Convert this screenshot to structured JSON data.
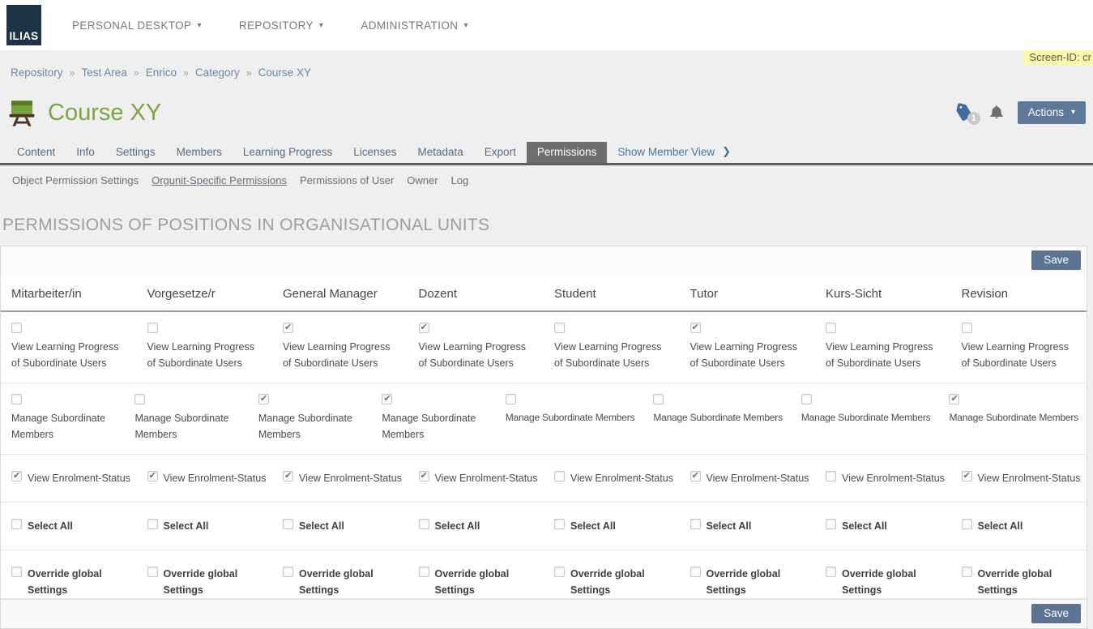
{
  "topnav": {
    "logo_text": "ILIAS",
    "items": [
      {
        "label": "PERSONAL DESKTOP"
      },
      {
        "label": "REPOSITORY"
      },
      {
        "label": "ADMINISTRATION"
      }
    ]
  },
  "screen_id_label": "Screen-ID: cr",
  "breadcrumb": {
    "separator": "»",
    "items": [
      "Repository",
      "Test Area",
      "Enrico",
      "Category",
      "Course XY"
    ]
  },
  "header": {
    "title": "Course XY",
    "tag_badge_count": "1",
    "actions_button_label": "Actions"
  },
  "icons": {
    "caret_down": "▾",
    "chevron_right": "❯",
    "course_icon": "green-chalkboard-easel",
    "tag_icon": "blue-tag",
    "bell_icon": "gray-bell"
  },
  "tabs": {
    "items": [
      {
        "label": "Content",
        "active": false
      },
      {
        "label": "Info",
        "active": false
      },
      {
        "label": "Settings",
        "active": false
      },
      {
        "label": "Members",
        "active": false
      },
      {
        "label": "Learning Progress",
        "active": false
      },
      {
        "label": "Licenses",
        "active": false
      },
      {
        "label": "Metadata",
        "active": false
      },
      {
        "label": "Export",
        "active": false
      },
      {
        "label": "Permissions",
        "active": true
      }
    ],
    "member_view_label": "Show Member View"
  },
  "subtabs": [
    {
      "label": "Object Permission Settings",
      "active": false
    },
    {
      "label": "Orgunit-Specific Permissions",
      "active": true
    },
    {
      "label": "Permissions of User",
      "active": false
    },
    {
      "label": "Owner",
      "active": false
    },
    {
      "label": "Log",
      "active": false
    }
  ],
  "section_heading": "PERMISSIONS OF POSITIONS IN ORGANISATIONAL UNITS",
  "save_button_label": "Save",
  "permissions_table": {
    "columns": [
      "Mitarbeiter/in",
      "Vorgesetze/r",
      "General Manager",
      "Dozent",
      "Student",
      "Tutor",
      "Kurs-Sicht",
      "Revision"
    ],
    "rows": [
      {
        "label": "View Learning Progress of Subordinate Users",
        "layout": "stacked",
        "bold": false,
        "checked": [
          false,
          false,
          true,
          true,
          false,
          true,
          false,
          false
        ]
      },
      {
        "label": "Manage Subordinate Members",
        "layout": "stacked",
        "bold": false,
        "nowrap_from": 4,
        "checked": [
          false,
          false,
          true,
          true,
          false,
          false,
          false,
          true
        ]
      },
      {
        "label": "View Enrolment-Status",
        "layout": "inline",
        "bold": false,
        "checked": [
          true,
          true,
          true,
          true,
          false,
          true,
          false,
          true
        ]
      },
      {
        "label": "Select All",
        "layout": "inline",
        "bold": true,
        "checked": [
          false,
          false,
          false,
          false,
          false,
          false,
          false,
          false
        ]
      },
      {
        "label": "Override global Settings",
        "layout": "inline",
        "bold": true,
        "checked": [
          false,
          false,
          false,
          false,
          false,
          false,
          false,
          false
        ]
      }
    ]
  },
  "colors": {
    "logo_bg": "#1d3347",
    "primary_button": "#5e7899",
    "save_button": "#5c7394",
    "active_tab_bg": "#6e6e6e",
    "title_green": "#7da43f",
    "screen_id_bg": "#fcf8ae",
    "tag_icon_blue": "#3f6b9d",
    "link_blue": "#47749e"
  }
}
